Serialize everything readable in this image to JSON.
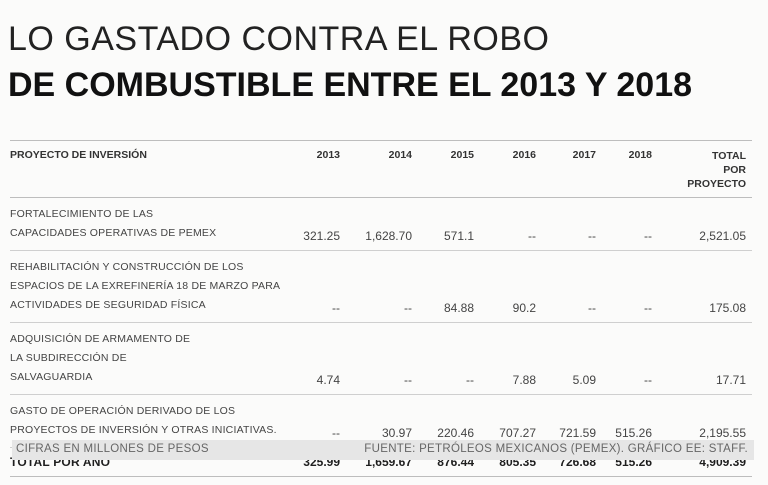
{
  "header": {
    "title_line1": "LO GASTADO CONTRA EL ROBO",
    "title_line2": "DE COMBUSTIBLE ENTRE EL 2013 Y 2018"
  },
  "chart_data": {
    "type": "table",
    "title": "LO GASTADO CONTRA EL ROBO DE COMBUSTIBLE ENTRE EL 2013 Y 2018",
    "columns": [
      "PROYECTO DE INVERSIÓN",
      "2013",
      "2014",
      "2015",
      "2016",
      "2017",
      "2018",
      "TOTAL POR PROYECTO"
    ],
    "total_col_line1": "TOTAL",
    "total_col_line2": "POR PROYECTO",
    "rows": [
      {
        "name": "FORTALECIMIENTO DE LAS CAPACIDADES OPERATIVAS DE PEMEX",
        "values": [
          "321.25",
          "1,628.70",
          "571.1",
          "--",
          "--",
          "--",
          "2,521.05"
        ]
      },
      {
        "name": "REHABILITACIÓN Y CONSTRUCCIÓN DE LOS ESPACIOS DE LA EXREFINERÍA 18 DE MARZO PARA ACTIVIDADES DE SEGURIDAD FÍSICA",
        "values": [
          "--",
          "--",
          "84.88",
          "90.2",
          "--",
          "--",
          "175.08"
        ]
      },
      {
        "name": "ADQUISICIÓN DE ARMAMENTO DE LA SUBDIRECCIÓN DE SALVAGUARDIA",
        "values": [
          "4.74",
          "--",
          "--",
          "7.88",
          "5.09",
          "--",
          "17.71"
        ]
      },
      {
        "name": "GASTO DE OPERACIÓN DERIVADO DE LOS PROYECTOS DE INVERSIÓN Y OTRAS INICIATIVAS.",
        "values": [
          "--",
          "30.97",
          "220.46",
          "707.27",
          "721.59",
          "515.26",
          "2,195.55"
        ]
      }
    ],
    "totals": {
      "label": "TOTAL POR AÑO",
      "values": [
        "325.99",
        "1,659.67",
        "876.44",
        "805.35",
        "726.68",
        "515.26",
        "4,909.39"
      ]
    },
    "units_note": "CIFRAS EN MILLONES DE PESOS",
    "source": "FUENTE: PETRÓLEOS MEXICANOS (PEMEX). GRÁFICO EE: STAFF."
  }
}
